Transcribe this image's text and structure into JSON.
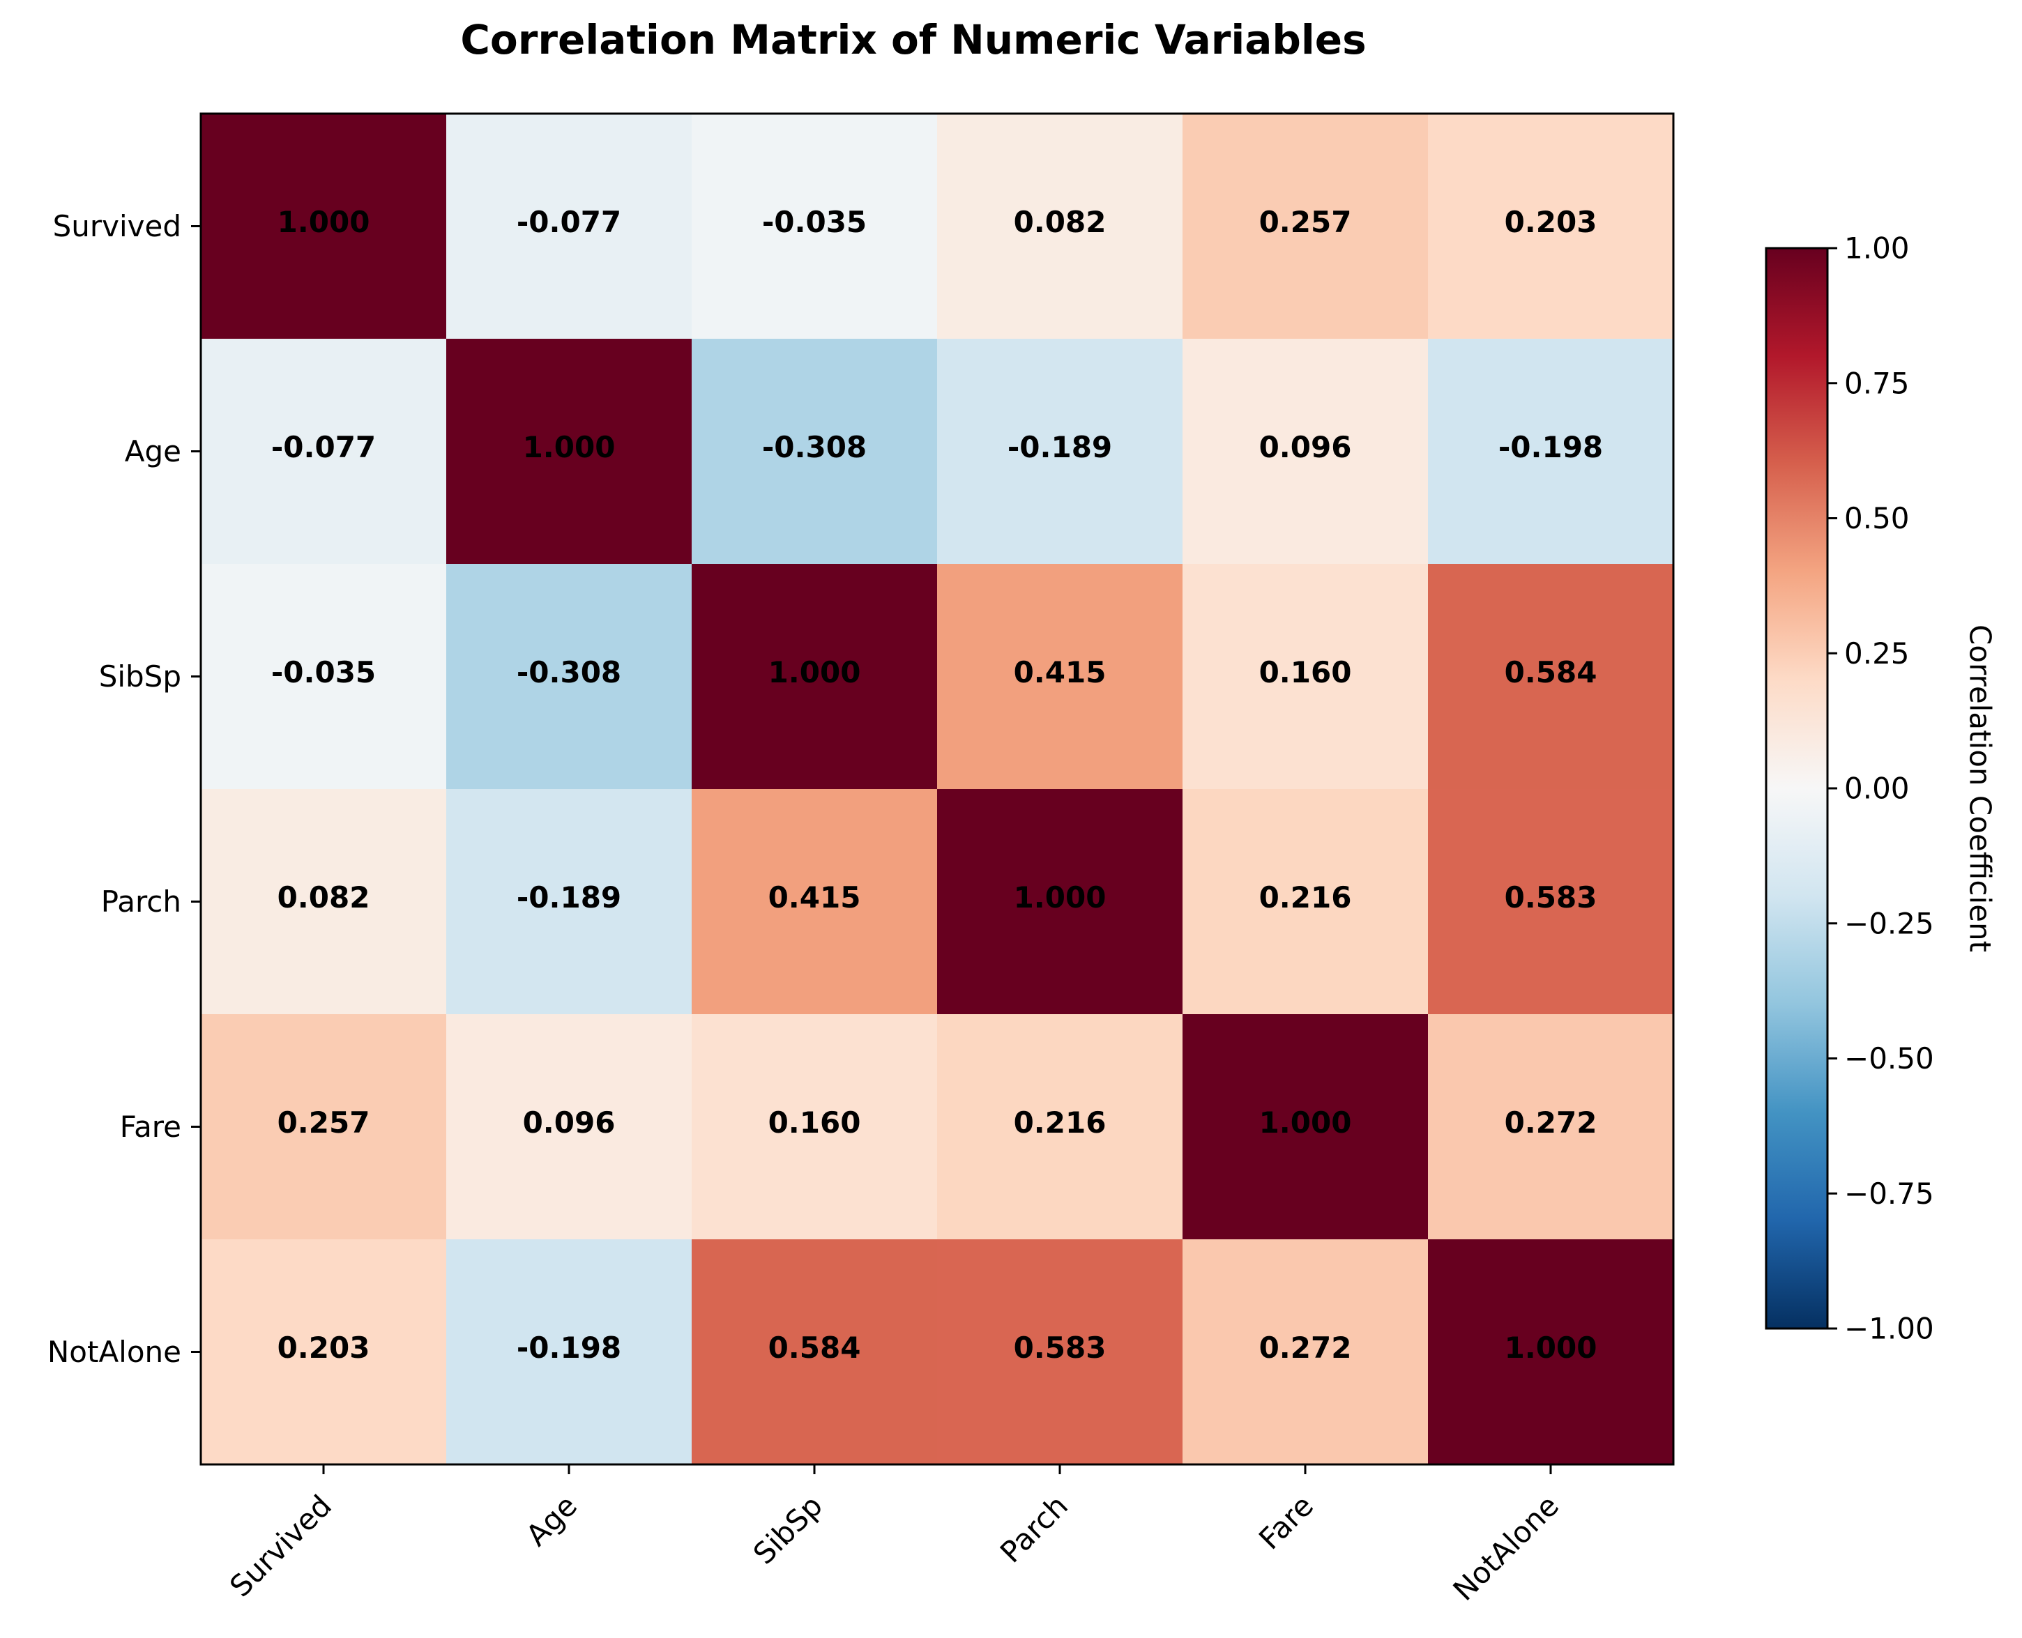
{
  "chart_data": {
    "type": "heatmap",
    "title": "Correlation Matrix of Numeric Variables",
    "x_labels": [
      "Survived",
      "Age",
      "SibSp",
      "Parch",
      "Fare",
      "NotAlone"
    ],
    "y_labels": [
      "Survived",
      "Age",
      "SibSp",
      "Parch",
      "Fare",
      "NotAlone"
    ],
    "values": [
      [
        1.0,
        -0.077,
        -0.035,
        0.082,
        0.257,
        0.203
      ],
      [
        -0.077,
        1.0,
        -0.308,
        -0.189,
        0.096,
        -0.198
      ],
      [
        -0.035,
        -0.308,
        1.0,
        0.415,
        0.16,
        0.584
      ],
      [
        0.082,
        -0.189,
        0.415,
        1.0,
        0.216,
        0.583
      ],
      [
        0.257,
        0.096,
        0.16,
        0.216,
        1.0,
        0.272
      ],
      [
        0.203,
        -0.198,
        0.584,
        0.583,
        0.272,
        1.0
      ]
    ],
    "cell_labels": [
      [
        "1.000",
        "-0.077",
        "-0.035",
        "0.082",
        "0.257",
        "0.203"
      ],
      [
        "-0.077",
        "1.000",
        "-0.308",
        "-0.189",
        "0.096",
        "-0.198"
      ],
      [
        "-0.035",
        "-0.308",
        "1.000",
        "0.415",
        "0.160",
        "0.584"
      ],
      [
        "0.082",
        "-0.189",
        "0.415",
        "1.000",
        "0.216",
        "0.583"
      ],
      [
        "0.257",
        "0.096",
        "0.160",
        "0.216",
        "1.000",
        "0.272"
      ],
      [
        "0.203",
        "-0.198",
        "0.584",
        "0.583",
        "0.272",
        "1.000"
      ]
    ],
    "colormap": "RdBu_r",
    "vmin": -1.0,
    "vmax": 1.0,
    "colorbar": {
      "label": "Correlation Coefficient",
      "placement": "right",
      "ticks": [
        1.0,
        0.75,
        0.5,
        0.25,
        0.0,
        -0.25,
        -0.5,
        -0.75,
        -1.0
      ],
      "tick_labels": [
        "1.00",
        "0.75",
        "0.50",
        "0.25",
        "0.00",
        "−0.25",
        "−0.50",
        "−0.75",
        "−1.00"
      ]
    },
    "grid": false
  }
}
